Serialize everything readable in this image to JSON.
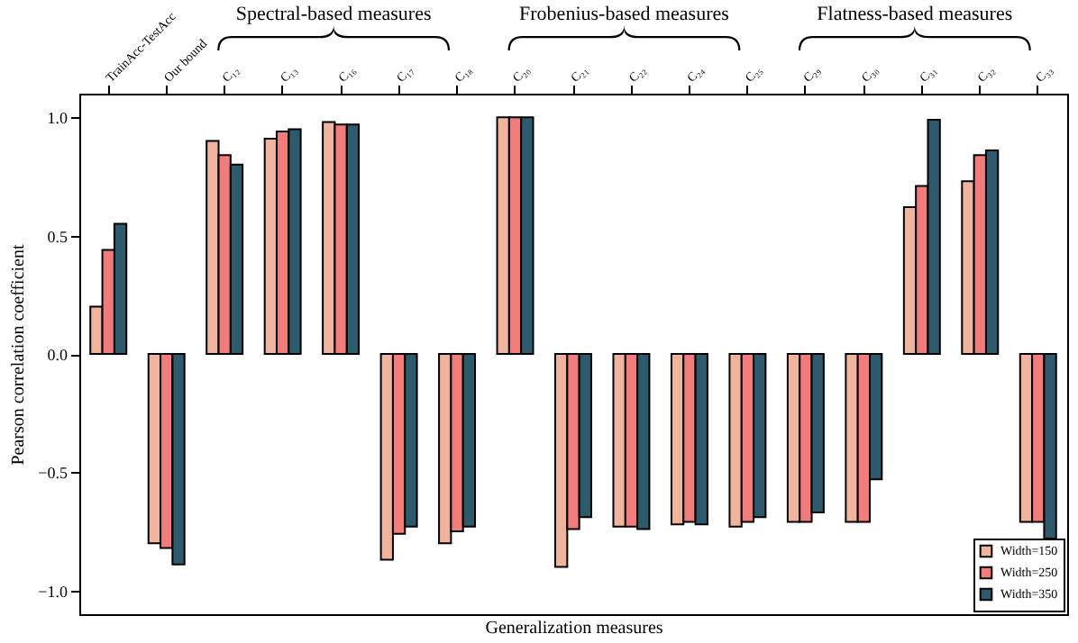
{
  "chart_data": {
    "type": "bar",
    "xlabel": "Generalization measures",
    "ylabel": "Pearson correlation coefficient",
    "categories": [
      "TrainAcc-TestAcc",
      "Our bound",
      "C₁₂",
      "C₁₃",
      "C₁₆",
      "C₁₇",
      "C₁₈",
      "C₂₀",
      "C₂₁",
      "C₂₂",
      "C₂₄",
      "C₂₅",
      "C₂₉",
      "C₃₀",
      "C₃₁",
      "C₃₂",
      "C₃₃"
    ],
    "series": [
      {
        "name": "Width=150",
        "color": "#f0b49e",
        "values": [
          0.2,
          -0.8,
          0.9,
          0.91,
          0.98,
          -0.87,
          -0.8,
          1.0,
          -0.9,
          -0.73,
          -0.72,
          -0.73,
          -0.71,
          -0.71,
          0.62,
          0.73,
          -0.71
        ]
      },
      {
        "name": "Width=250",
        "color": "#f27c7c",
        "values": [
          0.44,
          -0.82,
          0.84,
          0.94,
          0.97,
          -0.76,
          -0.75,
          1.0,
          -0.74,
          -0.73,
          -0.71,
          -0.71,
          -0.71,
          -0.71,
          0.71,
          0.84,
          -0.71
        ]
      },
      {
        "name": "Width=350",
        "color": "#2e5a6e",
        "values": [
          0.55,
          -0.89,
          0.8,
          0.95,
          0.97,
          -0.73,
          -0.73,
          1.0,
          -0.69,
          -0.74,
          -0.72,
          -0.69,
          -0.67,
          -0.53,
          0.99,
          0.86,
          -0.78
        ]
      }
    ],
    "ylim": [
      -1.1,
      1.1
    ],
    "yticks": [
      {
        "value": -1,
        "label": "−1.0"
      },
      {
        "value": -0.5,
        "label": "−0.5"
      },
      {
        "value": 0,
        "label": "0.0"
      },
      0.5,
      {
        "value": 1,
        "label": "1.0"
      }
    ],
    "annotations": [
      "Spectral-based measures",
      "Frobenius-based measures",
      "Flatness-based measures"
    ],
    "legend": "bottom right",
    "grid": false
  }
}
